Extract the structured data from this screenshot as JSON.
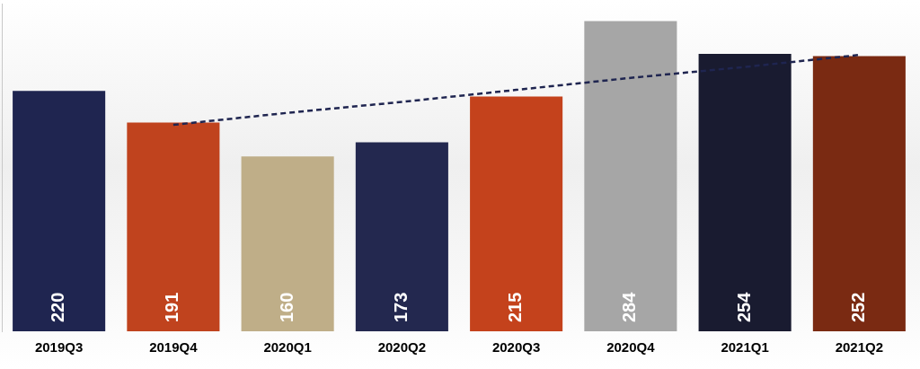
{
  "chart_data": {
    "type": "bar",
    "categories": [
      "2019Q3",
      "2019Q4",
      "2020Q1",
      "2020Q2",
      "2020Q3",
      "2020Q4",
      "2021Q1",
      "2021Q2"
    ],
    "values": [
      220,
      191,
      160,
      173,
      215,
      284,
      254,
      252
    ],
    "colors": [
      "#1f2550",
      "#c0431e",
      "#bfae88",
      "#23284f",
      "#c4421c",
      "#a6a6a6",
      "#191b30",
      "#7a2a12"
    ],
    "trend": {
      "values": [
        null,
        189,
        200,
        210,
        221,
        232,
        242,
        253
      ],
      "color": "#1f2550",
      "line_style": "dashed"
    },
    "ylim": [
      0,
      300
    ],
    "grid": false,
    "data_labels": true,
    "tick_labels": "x"
  }
}
